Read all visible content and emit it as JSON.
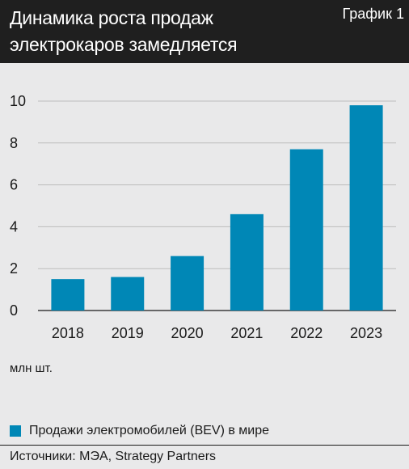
{
  "header": {
    "title": "Динамика роста продаж\nэлектрокаров замедляется",
    "badge": "График 1"
  },
  "chart_data": {
    "type": "bar",
    "categories": [
      "2018",
      "2019",
      "2020",
      "2021",
      "2022",
      "2023"
    ],
    "series": [
      {
        "name": "Продажи электромобилей (BEV) в мире",
        "values": [
          1.5,
          1.6,
          2.6,
          4.6,
          7.7,
          9.8
        ]
      }
    ],
    "ylim": [
      0,
      10
    ],
    "yticks": [
      0,
      2,
      4,
      6,
      8,
      10
    ],
    "grid": true,
    "legend": "bottom",
    "unit_label": "млн шт."
  },
  "colors": {
    "bar": "#0087b6",
    "grid": "#bdbdbd",
    "header_bg": "#1f1f1f",
    "background": "#e9e9ea"
  },
  "footer": {
    "source": "Источники: МЭА, Strategy Partners"
  }
}
